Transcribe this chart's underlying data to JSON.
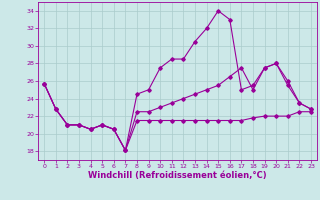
{
  "xlabel": "Windchill (Refroidissement éolien,°C)",
  "xlim": [
    -0.5,
    23.5
  ],
  "ylim": [
    17,
    35
  ],
  "yticks": [
    18,
    20,
    22,
    24,
    26,
    28,
    30,
    32,
    34
  ],
  "xticks": [
    0,
    1,
    2,
    3,
    4,
    5,
    6,
    7,
    8,
    9,
    10,
    11,
    12,
    13,
    14,
    15,
    16,
    17,
    18,
    19,
    20,
    21,
    22,
    23
  ],
  "bg_color": "#cce8e8",
  "grid_color": "#aacccc",
  "line_color": "#990099",
  "line1_x": [
    0,
    1,
    2,
    3,
    4,
    5,
    6,
    7,
    8,
    9,
    10,
    11,
    12,
    13,
    14,
    15,
    16,
    17,
    18,
    19,
    20,
    21,
    22,
    23
  ],
  "line1_y": [
    25.7,
    22.8,
    21.0,
    21.0,
    20.5,
    21.0,
    20.5,
    18.1,
    21.5,
    21.5,
    21.5,
    21.5,
    21.5,
    21.5,
    21.5,
    21.5,
    21.5,
    21.5,
    21.8,
    22.0,
    22.0,
    22.0,
    22.5,
    22.5
  ],
  "line2_x": [
    0,
    1,
    2,
    3,
    4,
    5,
    6,
    7,
    8,
    9,
    10,
    11,
    12,
    13,
    14,
    15,
    16,
    17,
    18,
    19,
    20,
    21,
    22,
    23
  ],
  "line2_y": [
    25.7,
    22.8,
    21.0,
    21.0,
    20.5,
    21.0,
    20.5,
    18.1,
    24.5,
    25.0,
    27.5,
    28.5,
    28.5,
    30.5,
    32.0,
    34.0,
    33.0,
    25.0,
    25.5,
    27.5,
    28.0,
    25.5,
    23.5,
    22.8
  ],
  "line3_x": [
    0,
    1,
    2,
    3,
    4,
    5,
    6,
    7,
    8,
    9,
    10,
    11,
    12,
    13,
    14,
    15,
    16,
    17,
    18,
    19,
    20,
    21,
    22,
    23
  ],
  "line3_y": [
    25.7,
    22.8,
    21.0,
    21.0,
    20.5,
    21.0,
    20.5,
    18.1,
    22.5,
    22.5,
    23.0,
    23.5,
    24.0,
    24.5,
    25.0,
    25.5,
    26.5,
    27.5,
    25.0,
    27.5,
    28.0,
    26.0,
    23.5,
    22.8
  ],
  "font_color": "#990099",
  "tick_fontsize": 4.5,
  "label_fontsize": 6.0
}
